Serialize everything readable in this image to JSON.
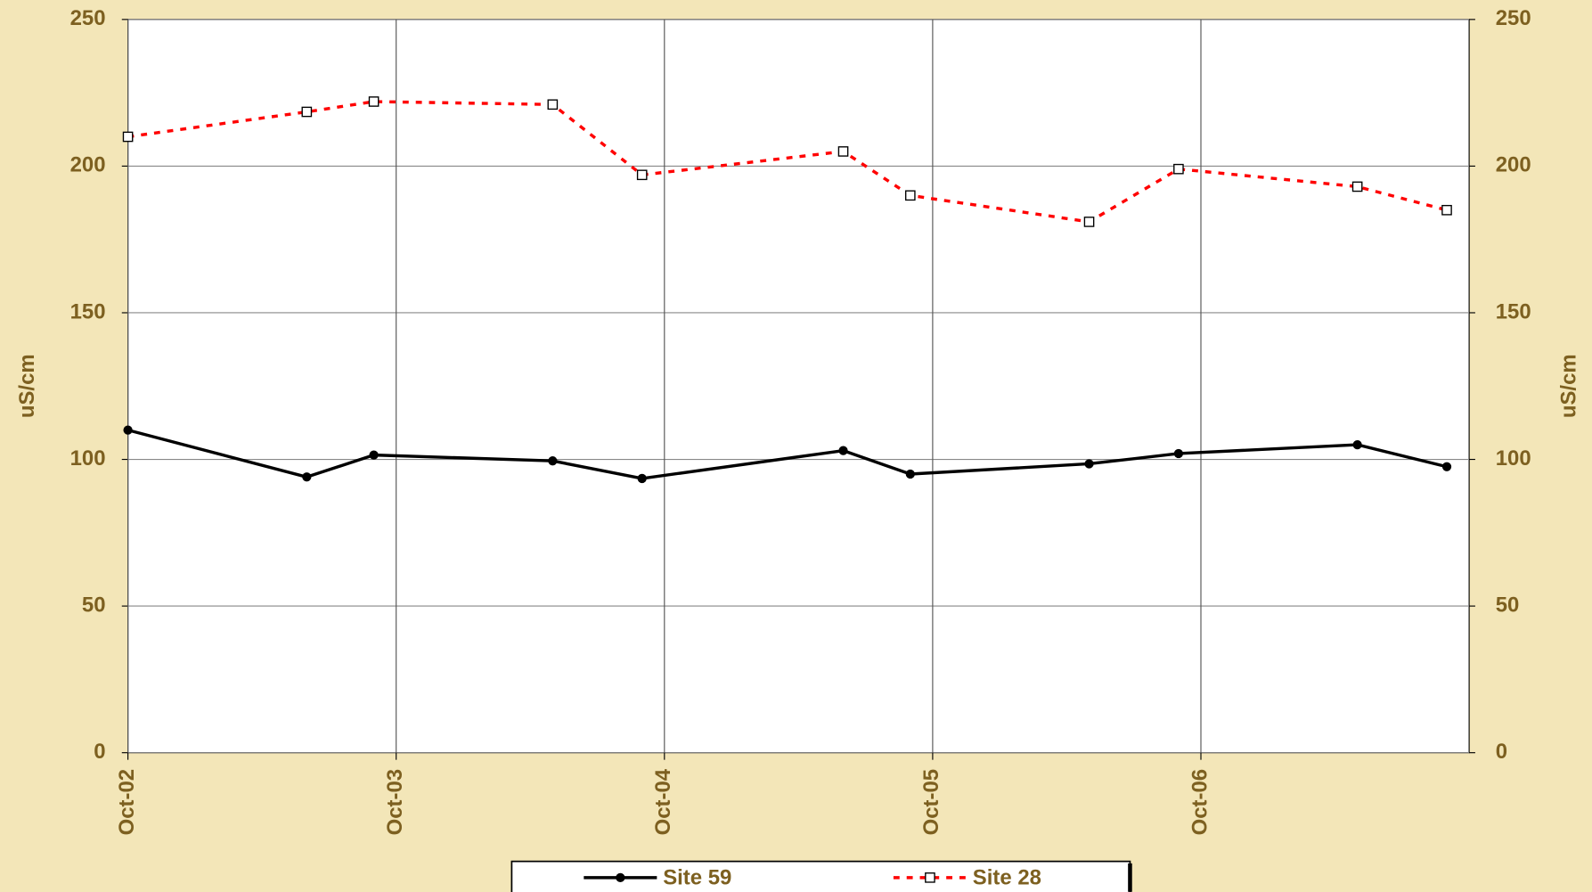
{
  "chart_data": {
    "type": "line",
    "x": [
      "2002-10",
      "2003-06",
      "2003-09",
      "2004-05",
      "2004-09",
      "2005-06",
      "2005-09",
      "2006-05",
      "2006-09",
      "2007-05",
      "2007-09"
    ],
    "series": [
      {
        "name": "Site 59",
        "color": "#000000",
        "values": [
          110,
          94,
          101.5,
          99.5,
          93.5,
          103,
          95,
          98.5,
          102,
          105,
          97.5
        ]
      },
      {
        "name": "Site 28",
        "color": "#ff0000",
        "values": [
          210,
          218.5,
          222,
          221,
          197,
          205,
          190,
          181,
          199,
          193,
          185
        ]
      }
    ],
    "xlim": [
      "2002-10",
      "2007-10"
    ],
    "xticks": [
      {
        "value": "2002-10",
        "label": "Oct-02"
      },
      {
        "value": "2003-10",
        "label": "Oct-03"
      },
      {
        "value": "2004-10",
        "label": "Oct-04"
      },
      {
        "value": "2005-10",
        "label": "Oct-05"
      },
      {
        "value": "2006-10",
        "label": "Oct-06"
      }
    ],
    "ylim": [
      0,
      250
    ],
    "yticks": [
      0,
      50,
      100,
      150,
      200,
      250
    ],
    "y2lim": [
      0,
      250
    ],
    "y2ticks": [
      0,
      50,
      100,
      150,
      200,
      250
    ],
    "ylabel": "uS/cm",
    "y2label": "uS/cm",
    "grid": true
  }
}
